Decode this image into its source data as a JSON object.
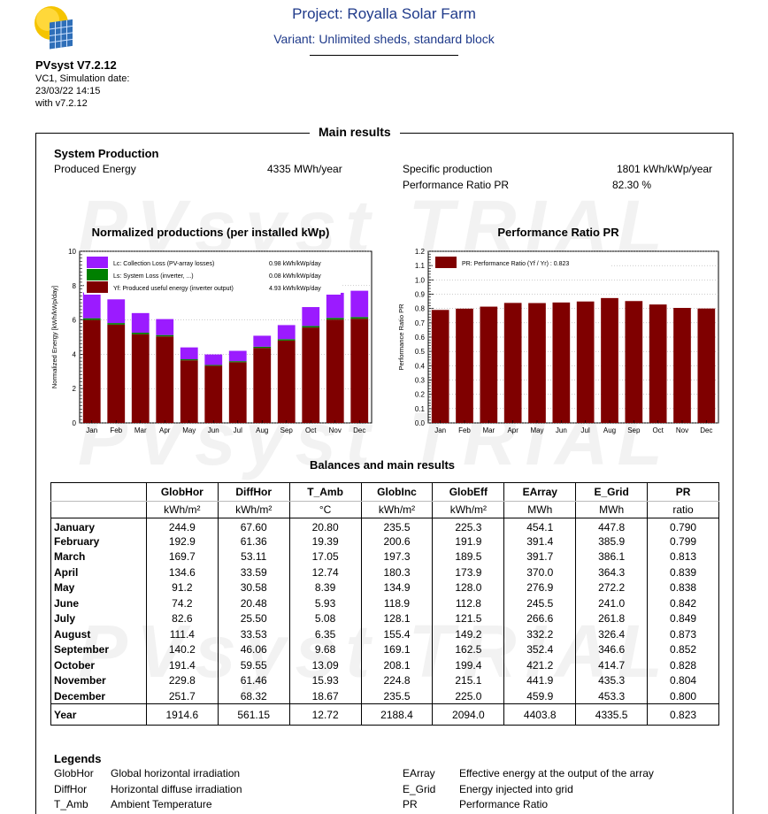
{
  "header": {
    "app_name": "PVsyst V7.2.12",
    "meta_lines": [
      "VC1, Simulation date:",
      "23/03/22 14:15",
      "with v7.2.12"
    ],
    "project_title": "Project: Royalla Solar Farm",
    "variant": "Variant: Unlimited sheds, standard block"
  },
  "watermark": "PVsyst TRIAL",
  "main_title": "Main results",
  "system_production": {
    "title": "System Production",
    "produced_energy_label": "Produced Energy",
    "produced_energy_value": "4335 MWh/year",
    "specific_production_label": "Specific production",
    "specific_production_value": "1801 kWh/kWp/year",
    "pr_label": "Performance Ratio PR",
    "pr_value": "82.30 %"
  },
  "colors": {
    "yf": "#7f0000",
    "ls": "#008000",
    "lc": "#9b1bff",
    "pr_bar": "#7f0000"
  },
  "chart_data": [
    {
      "type": "bar",
      "title": "Normalized productions (per installed kWp)",
      "ylabel": "Normalized Energy [kWh/kWp/day]",
      "ylim": [
        0,
        10
      ],
      "yticks": [
        0,
        2,
        4,
        6,
        8,
        10
      ],
      "stacked": true,
      "categories": [
        "Jan",
        "Feb",
        "Mar",
        "Apr",
        "May",
        "Jun",
        "Jul",
        "Aug",
        "Sep",
        "Oct",
        "Nov",
        "Dec"
      ],
      "series": [
        {
          "name": "Yf: Produced useful energy  (inverter output)",
          "legend_value": "4.93 kWh/kWp/day",
          "color": "#7f0000",
          "values": [
            6.0,
            5.73,
            5.17,
            5.04,
            3.65,
            3.33,
            3.54,
            4.37,
            4.8,
            5.56,
            6.02,
            6.07
          ]
        },
        {
          "name": "Ls: System Loss  (inverter, ...)",
          "legend_value": "0.08 kWh/kWp/day",
          "color": "#008000",
          "values": [
            0.1,
            0.09,
            0.09,
            0.08,
            0.06,
            0.05,
            0.06,
            0.07,
            0.08,
            0.09,
            0.1,
            0.1
          ]
        },
        {
          "name": "Lc: Collection Loss (PV-array losses)",
          "legend_value": "0.98 kWh/kWp/day",
          "color": "#9b1bff",
          "values": [
            1.5,
            1.38,
            1.14,
            0.93,
            0.69,
            0.61,
            0.6,
            0.64,
            0.82,
            1.1,
            1.46,
            1.53
          ]
        }
      ],
      "legend_placement": "top-left"
    },
    {
      "type": "bar",
      "title": "Performance Ratio PR",
      "ylabel": "Performance Ratio PR",
      "ylim": [
        0,
        1.2
      ],
      "yticks": [
        0,
        0.1,
        0.2,
        0.3,
        0.4,
        0.5,
        0.6,
        0.7,
        0.8,
        0.9,
        1.0,
        1.1,
        1.2
      ],
      "categories": [
        "Jan",
        "Feb",
        "Mar",
        "Apr",
        "May",
        "Jun",
        "Jul",
        "Aug",
        "Sep",
        "Oct",
        "Nov",
        "Dec"
      ],
      "series": [
        {
          "name": "PR: Performance Ratio (Yf / Yr) :  0.823",
          "color": "#7f0000",
          "values": [
            0.79,
            0.799,
            0.813,
            0.839,
            0.838,
            0.842,
            0.849,
            0.873,
            0.852,
            0.828,
            0.804,
            0.8
          ]
        }
      ],
      "legend_placement": "top-left"
    },
    {
      "type": "table",
      "title": "Balances and main results",
      "columns": [
        "GlobHor",
        "DiffHor",
        "T_Amb",
        "GlobInc",
        "GlobEff",
        "EArray",
        "E_Grid",
        "PR"
      ],
      "units": [
        "kWh/m²",
        "kWh/m²",
        "°C",
        "kWh/m²",
        "kWh/m²",
        "MWh",
        "MWh",
        "ratio"
      ],
      "rows": [
        {
          "label": "January",
          "values": [
            "244.9",
            "67.60",
            "20.80",
            "235.5",
            "225.3",
            "454.1",
            "447.8",
            "0.790"
          ]
        },
        {
          "label": "February",
          "values": [
            "192.9",
            "61.36",
            "19.39",
            "200.6",
            "191.9",
            "391.4",
            "385.9",
            "0.799"
          ]
        },
        {
          "label": "March",
          "values": [
            "169.7",
            "53.11",
            "17.05",
            "197.3",
            "189.5",
            "391.7",
            "386.1",
            "0.813"
          ]
        },
        {
          "label": "April",
          "values": [
            "134.6",
            "33.59",
            "12.74",
            "180.3",
            "173.9",
            "370.0",
            "364.3",
            "0.839"
          ]
        },
        {
          "label": "May",
          "values": [
            "91.2",
            "30.58",
            "8.39",
            "134.9",
            "128.0",
            "276.9",
            "272.2",
            "0.838"
          ]
        },
        {
          "label": "June",
          "values": [
            "74.2",
            "20.48",
            "5.93",
            "118.9",
            "112.8",
            "245.5",
            "241.0",
            "0.842"
          ]
        },
        {
          "label": "July",
          "values": [
            "82.6",
            "25.50",
            "5.08",
            "128.1",
            "121.5",
            "266.6",
            "261.8",
            "0.849"
          ]
        },
        {
          "label": "August",
          "values": [
            "111.4",
            "33.53",
            "6.35",
            "155.4",
            "149.2",
            "332.2",
            "326.4",
            "0.873"
          ]
        },
        {
          "label": "September",
          "values": [
            "140.2",
            "46.06",
            "9.68",
            "169.1",
            "162.5",
            "352.4",
            "346.6",
            "0.852"
          ]
        },
        {
          "label": "October",
          "values": [
            "191.4",
            "59.55",
            "13.09",
            "208.1",
            "199.4",
            "421.2",
            "414.7",
            "0.828"
          ]
        },
        {
          "label": "November",
          "values": [
            "229.8",
            "61.46",
            "15.93",
            "224.8",
            "215.1",
            "441.9",
            "435.3",
            "0.804"
          ]
        },
        {
          "label": "December",
          "values": [
            "251.7",
            "68.32",
            "18.67",
            "235.5",
            "225.0",
            "459.9",
            "453.3",
            "0.800"
          ]
        }
      ],
      "total": {
        "label": "Year",
        "values": [
          "1914.6",
          "561.15",
          "12.72",
          "2188.4",
          "2094.0",
          "4403.8",
          "4335.5",
          "0.823"
        ]
      }
    }
  ],
  "legends": {
    "title": "Legends",
    "items_left": [
      {
        "key": "GlobHor",
        "desc": "Global horizontal irradiation"
      },
      {
        "key": "DiffHor",
        "desc": "Horizontal diffuse irradiation"
      },
      {
        "key": "T_Amb",
        "desc": "Ambient Temperature"
      }
    ],
    "items_right": [
      {
        "key": "EArray",
        "desc": "Effective energy at the output of the array"
      },
      {
        "key": "E_Grid",
        "desc": "Energy injected into grid"
      },
      {
        "key": "PR",
        "desc": "Performance Ratio"
      }
    ]
  }
}
